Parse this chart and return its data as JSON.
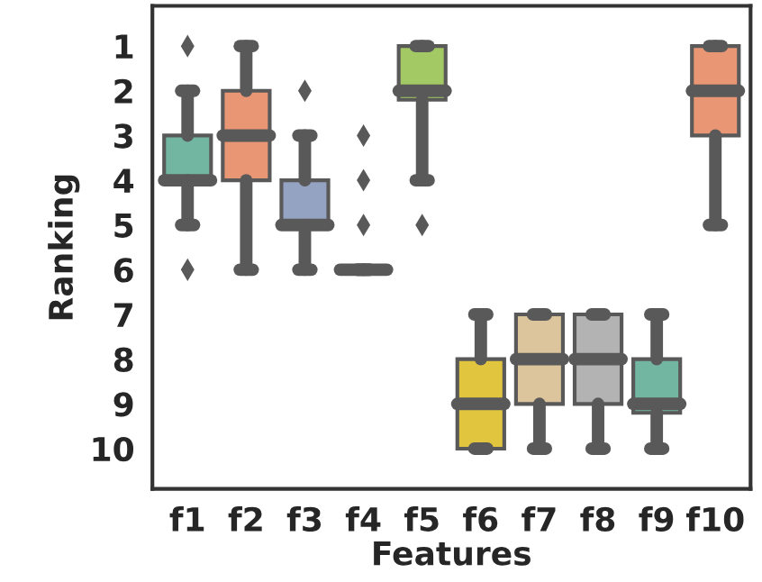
{
  "chart_data": {
    "type": "box",
    "xlabel": "Features",
    "ylabel": "Ranking",
    "categories": [
      "f1",
      "f2",
      "f3",
      "f4",
      "f5",
      "f6",
      "f7",
      "f8",
      "f9",
      "f10"
    ],
    "colors": [
      "#72b6a1",
      "#e99675",
      "#95a3c3",
      "#595959",
      "#a3c964",
      "#e2c53f",
      "#dcc49c",
      "#b3b3b3",
      "#72b6a1",
      "#e99675"
    ],
    "boxes": [
      {
        "low": 2,
        "q1": 3,
        "median": 4,
        "q3": 4,
        "high": 5,
        "outliers": [
          1,
          6
        ]
      },
      {
        "low": 1,
        "q1": 2,
        "median": 3,
        "q3": 4,
        "high": 6
      },
      {
        "low": 3,
        "q1": 4,
        "median": 5,
        "q3": 5,
        "high": 6,
        "outliers": [
          2
        ]
      },
      {
        "low": 6,
        "q1": 6,
        "median": 6,
        "q3": 6,
        "high": 6,
        "outliers": [
          3,
          4,
          5
        ]
      },
      {
        "low": 1,
        "q1": 1,
        "median": 2,
        "q3": 2.2,
        "high": 4,
        "outliers": [
          5
        ]
      },
      {
        "low": 7,
        "q1": 8,
        "median": 9,
        "q3": 10,
        "high": 10
      },
      {
        "low": 7,
        "q1": 7,
        "median": 8,
        "q3": 9,
        "high": 10
      },
      {
        "low": 7,
        "q1": 7,
        "median": 8,
        "q3": 9,
        "high": 10
      },
      {
        "low": 7,
        "q1": 8,
        "median": 9,
        "q3": 9.2,
        "high": 10
      },
      {
        "low": 1,
        "q1": 1,
        "median": 2,
        "q3": 3,
        "high": 5
      }
    ],
    "ylim": [
      10.9,
      0.1
    ],
    "yticks": [
      1,
      2,
      3,
      4,
      5,
      6,
      7,
      8,
      9,
      10
    ],
    "grid": false,
    "legend": false
  }
}
